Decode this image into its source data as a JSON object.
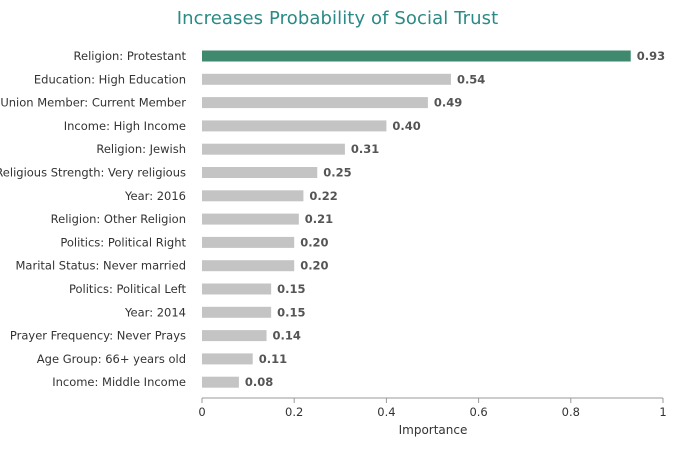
{
  "chart_data": {
    "type": "bar",
    "orientation": "horizontal",
    "title": "Increases Probability of Social Trust",
    "xlabel": "Importance",
    "ylabel": "",
    "xlim": [
      0,
      1
    ],
    "xticks": [
      "0",
      "0.2",
      "0.4",
      "0.6",
      "0.8",
      "1"
    ],
    "grid": false,
    "categories": [
      "Religion: Protestant",
      "Education: High Education",
      "Union Member: Current Member",
      "Income: High Income",
      "Religion: Jewish",
      "Religious Strength: Very religious",
      "Year: 2016",
      "Religion: Other Religion",
      "Politics: Political Right",
      "Marital Status: Never married",
      "Politics: Political Left",
      "Year: 2014",
      "Prayer Frequency: Never Prays",
      "Age Group: 66+ years old",
      "Income: Middle Income"
    ],
    "values": [
      0.93,
      0.54,
      0.49,
      0.4,
      0.31,
      0.25,
      0.22,
      0.21,
      0.2,
      0.2,
      0.15,
      0.15,
      0.14,
      0.11,
      0.08
    ],
    "value_labels": [
      "0.93",
      "0.54",
      "0.49",
      "0.40",
      "0.31",
      "0.25",
      "0.22",
      "0.21",
      "0.20",
      "0.20",
      "0.15",
      "0.15",
      "0.14",
      "0.11",
      "0.08"
    ],
    "colors": {
      "highlight": "#3f8a6f",
      "default": "#c4c4c4",
      "title": "#2a8a85",
      "axis": "#999999"
    },
    "highlight_index": 0
  }
}
